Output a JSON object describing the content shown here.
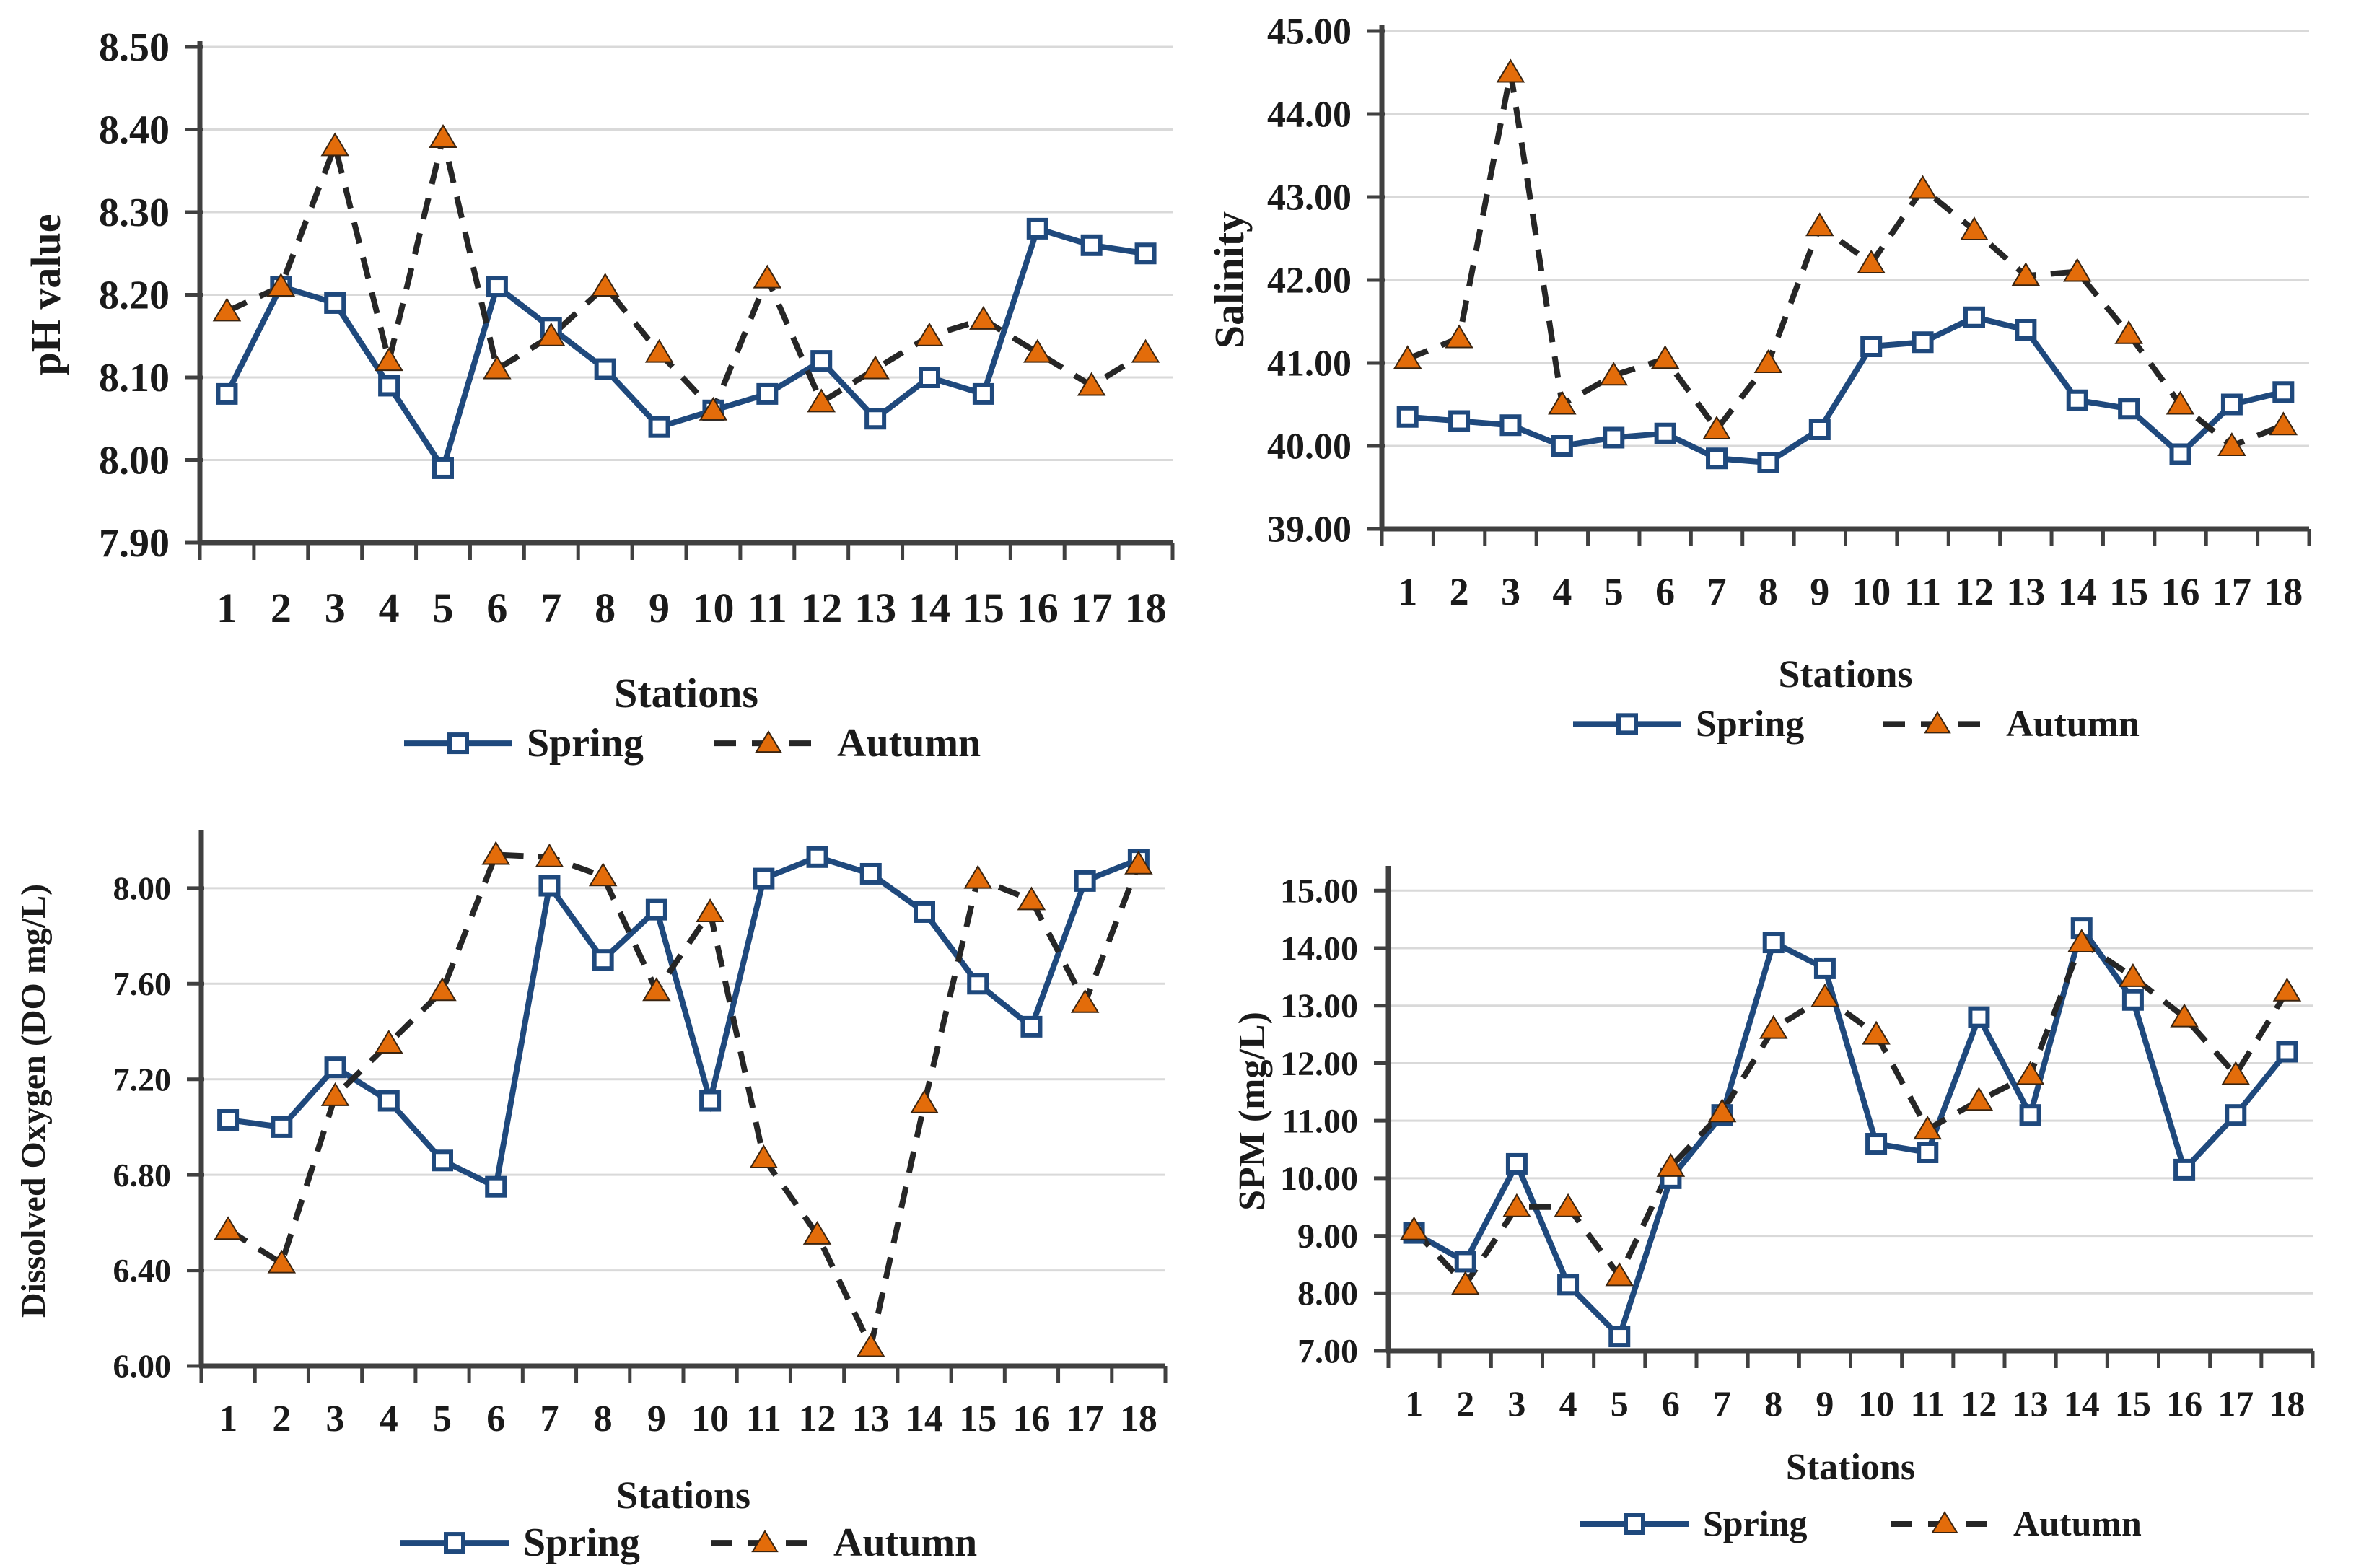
{
  "figure": {
    "description": "Seasonal comparison line charts of water quality parameters at 18 stations",
    "background": "#ffffff"
  },
  "colors": {
    "spring_line": "#1F497D",
    "autumn_line": "#262626",
    "autumn_marker": "#E36C0A",
    "marker_fill": "#ffffff",
    "grid": "#d9d9d9",
    "axis": "#404040",
    "text": "#1a1a1a"
  },
  "chart_data": [
    {
      "id": "ph",
      "type": "line",
      "title": "",
      "ylabel": "pH value",
      "xlabel": "Stations",
      "grid": true,
      "legend_position": "bottom",
      "ylim": [
        7.9,
        8.5
      ],
      "yticks": [
        7.9,
        8.0,
        8.1,
        8.2,
        8.3,
        8.4,
        8.5
      ],
      "ytick_labels": [
        "7.90",
        "8.00",
        "8.10",
        "8.20",
        "8.30",
        "8.40",
        "8.50"
      ],
      "categories": [
        "1",
        "2",
        "3",
        "4",
        "5",
        "6",
        "7",
        "8",
        "9",
        "10",
        "11",
        "12",
        "13",
        "14",
        "15",
        "16",
        "17",
        "18"
      ],
      "series": [
        {
          "name": "Spring",
          "style": "solid",
          "marker": "square",
          "values": [
            8.08,
            8.21,
            8.19,
            8.09,
            7.99,
            8.21,
            8.16,
            8.11,
            8.04,
            8.06,
            8.08,
            8.12,
            8.05,
            8.1,
            8.08,
            8.28,
            8.26,
            8.25
          ]
        },
        {
          "name": "Autumn",
          "style": "dashed",
          "marker": "triangle",
          "values": [
            8.18,
            8.21,
            8.38,
            8.12,
            8.39,
            8.11,
            8.15,
            8.21,
            8.13,
            8.06,
            8.22,
            8.07,
            8.11,
            8.15,
            8.17,
            8.13,
            8.09,
            8.13
          ]
        }
      ]
    },
    {
      "id": "salinity",
      "type": "line",
      "title": "",
      "ylabel": "Salinity",
      "xlabel": "Stations",
      "grid": true,
      "legend_position": "bottom",
      "ylim": [
        39.0,
        45.0
      ],
      "yticks": [
        39.0,
        40.0,
        41.0,
        42.0,
        43.0,
        44.0,
        45.0
      ],
      "ytick_labels": [
        "39.00",
        "40.00",
        "41.00",
        "42.00",
        "43.00",
        "44.00",
        "45.00"
      ],
      "categories": [
        "1",
        "2",
        "3",
        "4",
        "5",
        "6",
        "7",
        "8",
        "9",
        "10",
        "11",
        "12",
        "13",
        "14",
        "15",
        "16",
        "17",
        "18"
      ],
      "series": [
        {
          "name": "Spring",
          "style": "solid",
          "marker": "square",
          "values": [
            40.35,
            40.3,
            40.25,
            40.0,
            40.1,
            40.15,
            39.85,
            39.8,
            40.2,
            41.2,
            41.25,
            41.55,
            41.4,
            40.55,
            40.45,
            39.9,
            40.5,
            40.65
          ]
        },
        {
          "name": "Autumn",
          "style": "dashed",
          "marker": "triangle",
          "values": [
            41.05,
            41.3,
            44.5,
            40.5,
            40.85,
            41.05,
            40.2,
            41.0,
            42.65,
            42.2,
            43.1,
            42.6,
            42.05,
            42.1,
            41.35,
            40.5,
            40.0,
            40.25
          ]
        }
      ]
    },
    {
      "id": "do",
      "type": "line",
      "title": "",
      "ylabel": "Dissolved Oxygen (DO mg/L)",
      "xlabel": "Stations",
      "grid": true,
      "legend_position": "bottom",
      "ylim": [
        6.0,
        8.22
      ],
      "yticks": [
        6.0,
        6.4,
        6.8,
        7.2,
        7.6,
        8.0
      ],
      "ytick_labels": [
        "6.00",
        "6.40",
        "6.80",
        "7.20",
        "7.60",
        "8.00"
      ],
      "categories": [
        "1",
        "2",
        "3",
        "4",
        "5",
        "6",
        "7",
        "8",
        "9",
        "10",
        "11",
        "12",
        "13",
        "14",
        "15",
        "16",
        "17",
        "18"
      ],
      "series": [
        {
          "name": "Spring",
          "style": "solid",
          "marker": "square",
          "values": [
            7.03,
            7.0,
            7.25,
            7.11,
            6.86,
            6.75,
            8.01,
            7.7,
            7.91,
            7.11,
            8.04,
            8.13,
            8.06,
            7.9,
            7.6,
            7.42,
            8.03,
            8.12
          ]
        },
        {
          "name": "Autumn",
          "style": "dashed",
          "marker": "triangle",
          "values": [
            6.57,
            6.43,
            7.13,
            7.35,
            7.57,
            8.14,
            8.13,
            8.05,
            7.57,
            7.9,
            6.87,
            6.55,
            6.08,
            7.1,
            8.04,
            7.95,
            7.52,
            8.1
          ]
        }
      ]
    },
    {
      "id": "spm",
      "type": "line",
      "title": "",
      "ylabel": "SPM (mg/L)",
      "xlabel": "Stations",
      "grid": true,
      "legend_position": "bottom",
      "ylim": [
        7.0,
        15.0
      ],
      "yticks": [
        7.0,
        8.0,
        9.0,
        10.0,
        11.0,
        12.0,
        13.0,
        14.0,
        15.0
      ],
      "ytick_labels": [
        "7.00",
        "8.00",
        "9.00",
        "10.00",
        "11.00",
        "12.00",
        "13.00",
        "14.00",
        "15.00"
      ],
      "categories": [
        "1",
        "2",
        "3",
        "4",
        "5",
        "6",
        "7",
        "8",
        "9",
        "10",
        "11",
        "12",
        "13",
        "14",
        "15",
        "16",
        "17",
        "18"
      ],
      "series": [
        {
          "name": "Spring",
          "style": "solid",
          "marker": "square",
          "values": [
            9.05,
            8.55,
            10.25,
            8.15,
            7.25,
            10.0,
            11.1,
            14.1,
            13.65,
            10.6,
            10.45,
            12.8,
            11.1,
            14.35,
            13.1,
            10.15,
            11.1,
            12.2
          ]
        },
        {
          "name": "Autumn",
          "style": "dashed",
          "marker": "triangle",
          "values": [
            9.1,
            8.15,
            9.5,
            9.5,
            8.3,
            10.2,
            11.15,
            12.6,
            13.15,
            12.5,
            10.85,
            11.35,
            11.8,
            14.1,
            13.5,
            12.8,
            11.8,
            13.25
          ]
        }
      ]
    }
  ]
}
